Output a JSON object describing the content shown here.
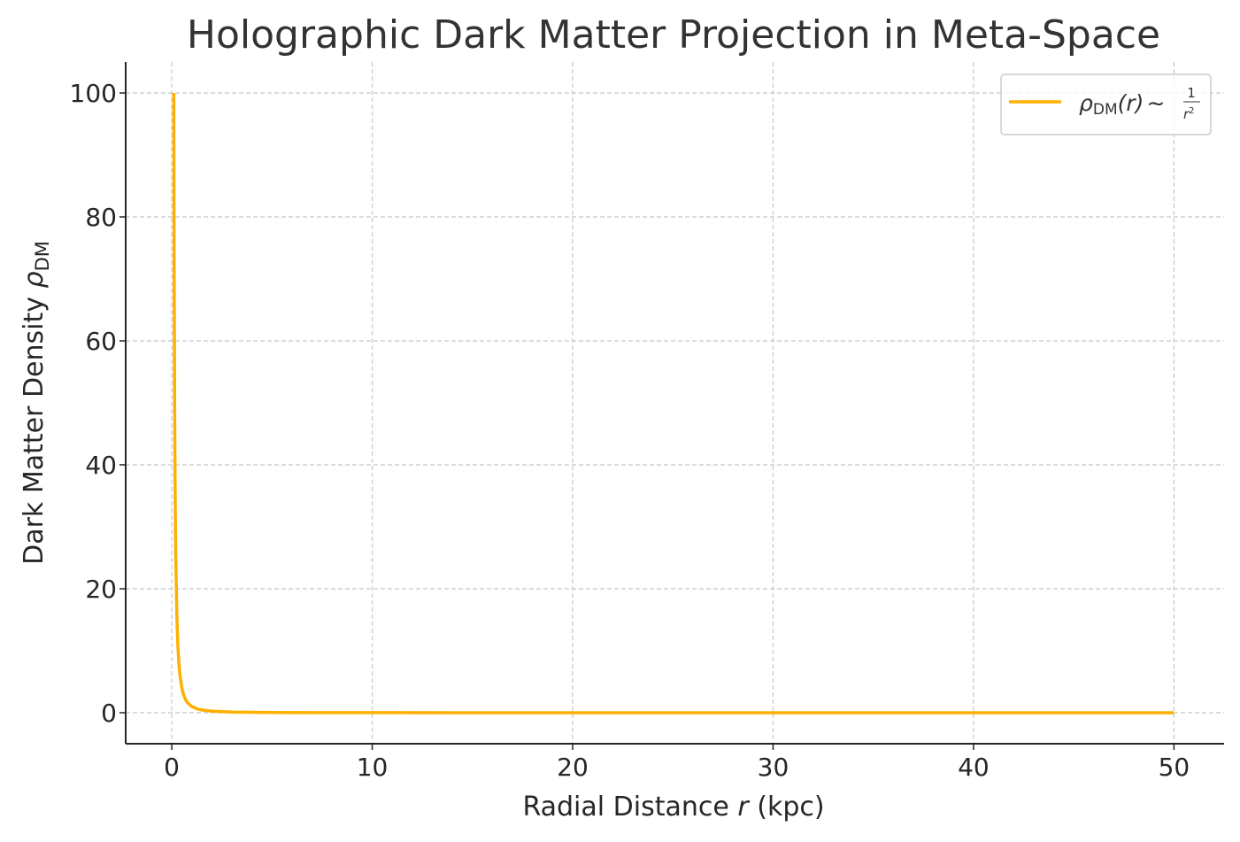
{
  "chart_data": {
    "type": "line",
    "title": "Holographic Dark Matter Projection in Meta-Space",
    "xlabel": {
      "prefix": "Radial Distance ",
      "var": "r",
      "suffix": " (kpc)"
    },
    "ylabel": {
      "prefix": "Dark Matter Density ",
      "symbol": "ρ",
      "subscript": "DM"
    },
    "xlim": [
      -2.3,
      52.5
    ],
    "ylim": [
      -5,
      105
    ],
    "xticks": [
      0,
      10,
      20,
      30,
      40,
      50
    ],
    "xtick_labels": [
      "0",
      "10",
      "20",
      "30",
      "40",
      "50"
    ],
    "yticks": [
      0,
      20,
      40,
      60,
      80,
      100
    ],
    "ytick_labels": [
      "0",
      "20",
      "40",
      "60",
      "80",
      "100"
    ],
    "grid": true,
    "legend_position": "top-right",
    "series": [
      {
        "name": {
          "symbol": "ρ",
          "subscript": "DM",
          "arg": "(r)",
          "op": "∼",
          "numerator": "1",
          "denominator": "r",
          "power": "2"
        },
        "color": "#FFB000",
        "formula": "1/r^2",
        "x_range": [
          0.1,
          50
        ],
        "points": [
          [
            0.1,
            100
          ],
          [
            0.11,
            82.64
          ],
          [
            0.12,
            69.44
          ],
          [
            0.14,
            51.02
          ],
          [
            0.16,
            39.06
          ],
          [
            0.18,
            30.86
          ],
          [
            0.2,
            25
          ],
          [
            0.25,
            16
          ],
          [
            0.3,
            11.11
          ],
          [
            0.35,
            8.16
          ],
          [
            0.4,
            6.25
          ],
          [
            0.5,
            4
          ],
          [
            0.6,
            2.78
          ],
          [
            0.7,
            2.04
          ],
          [
            0.8,
            1.56
          ],
          [
            1.0,
            1
          ],
          [
            1.25,
            0.64
          ],
          [
            1.5,
            0.44
          ],
          [
            2,
            0.25
          ],
          [
            3,
            0.11
          ],
          [
            4,
            0.0625
          ],
          [
            5,
            0.04
          ],
          [
            7,
            0.02
          ],
          [
            10,
            0.01
          ],
          [
            15,
            0.0044
          ],
          [
            20,
            0.0025
          ],
          [
            30,
            0.0011
          ],
          [
            40,
            0.0006
          ],
          [
            50,
            0.0004
          ]
        ]
      }
    ]
  },
  "colors": {
    "line": "#FFB000",
    "grid": "#c8c8c8",
    "axis": "#262626",
    "text": "#262626",
    "legend_border": "#cccccc"
  }
}
